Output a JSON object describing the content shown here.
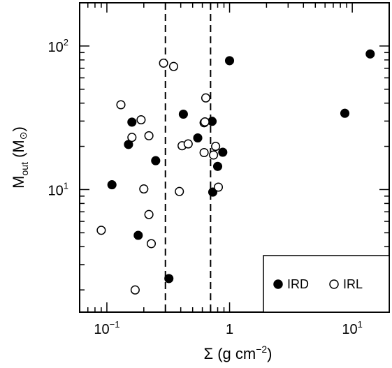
{
  "chart_data": {
    "type": "scatter",
    "x_scale": "log",
    "y_scale": "log",
    "xlim": [
      0.06,
      20
    ],
    "ylim": [
      1.4,
      200
    ],
    "xlabel": {
      "main": "Σ",
      "units": "(g cm",
      "exp": "−2",
      "close": ")"
    },
    "ylabel": {
      "main": "M",
      "sub": "out",
      "units": "(M",
      "sun": "⊙",
      "close": ")"
    },
    "x_tick_labels": [
      {
        "value": 0.1,
        "base": "10",
        "exp": "−1"
      },
      {
        "value": 1,
        "base": "1",
        "exp": ""
      },
      {
        "value": 10,
        "base": "10",
        "exp": "1"
      }
    ],
    "y_tick_labels": [
      {
        "value": 10,
        "base": "10",
        "exp": "1"
      },
      {
        "value": 100,
        "base": "10",
        "exp": "2"
      }
    ],
    "vlines": [
      0.3,
      0.7
    ],
    "vline_style": "dashed",
    "legend": {
      "position": "bottom-right",
      "entries": [
        {
          "label": "IRD",
          "marker": "filled-circle"
        },
        {
          "label": "IRL",
          "marker": "open-circle"
        }
      ]
    },
    "series": [
      {
        "name": "IRD",
        "marker": "filled",
        "points": [
          [
            0.11,
            10.8
          ],
          [
            0.15,
            20.6
          ],
          [
            0.16,
            29.5
          ],
          [
            0.18,
            4.8
          ],
          [
            0.25,
            15.9
          ],
          [
            0.32,
            2.4
          ],
          [
            0.42,
            33.5
          ],
          [
            0.55,
            22.9
          ],
          [
            0.72,
            29.9
          ],
          [
            0.73,
            9.6
          ],
          [
            0.8,
            14.5
          ],
          [
            0.88,
            18.2
          ],
          [
            1.0,
            79.0
          ],
          [
            8.7,
            34.0
          ],
          [
            14.0,
            88.0
          ]
        ]
      },
      {
        "name": "IRL",
        "marker": "open",
        "points": [
          [
            0.09,
            5.2
          ],
          [
            0.13,
            39.0
          ],
          [
            0.16,
            23.1
          ],
          [
            0.17,
            2.0
          ],
          [
            0.19,
            30.6
          ],
          [
            0.2,
            10.1
          ],
          [
            0.22,
            6.7
          ],
          [
            0.22,
            23.7
          ],
          [
            0.23,
            4.2
          ],
          [
            0.29,
            76.0
          ],
          [
            0.35,
            72.0
          ],
          [
            0.39,
            9.7
          ],
          [
            0.41,
            20.2
          ],
          [
            0.46,
            20.8
          ],
          [
            0.62,
            18.1
          ],
          [
            0.62,
            29.2
          ],
          [
            0.63,
            29.6
          ],
          [
            0.64,
            43.5
          ],
          [
            0.74,
            17.4
          ],
          [
            0.77,
            20.0
          ],
          [
            0.81,
            10.4
          ]
        ]
      }
    ]
  }
}
